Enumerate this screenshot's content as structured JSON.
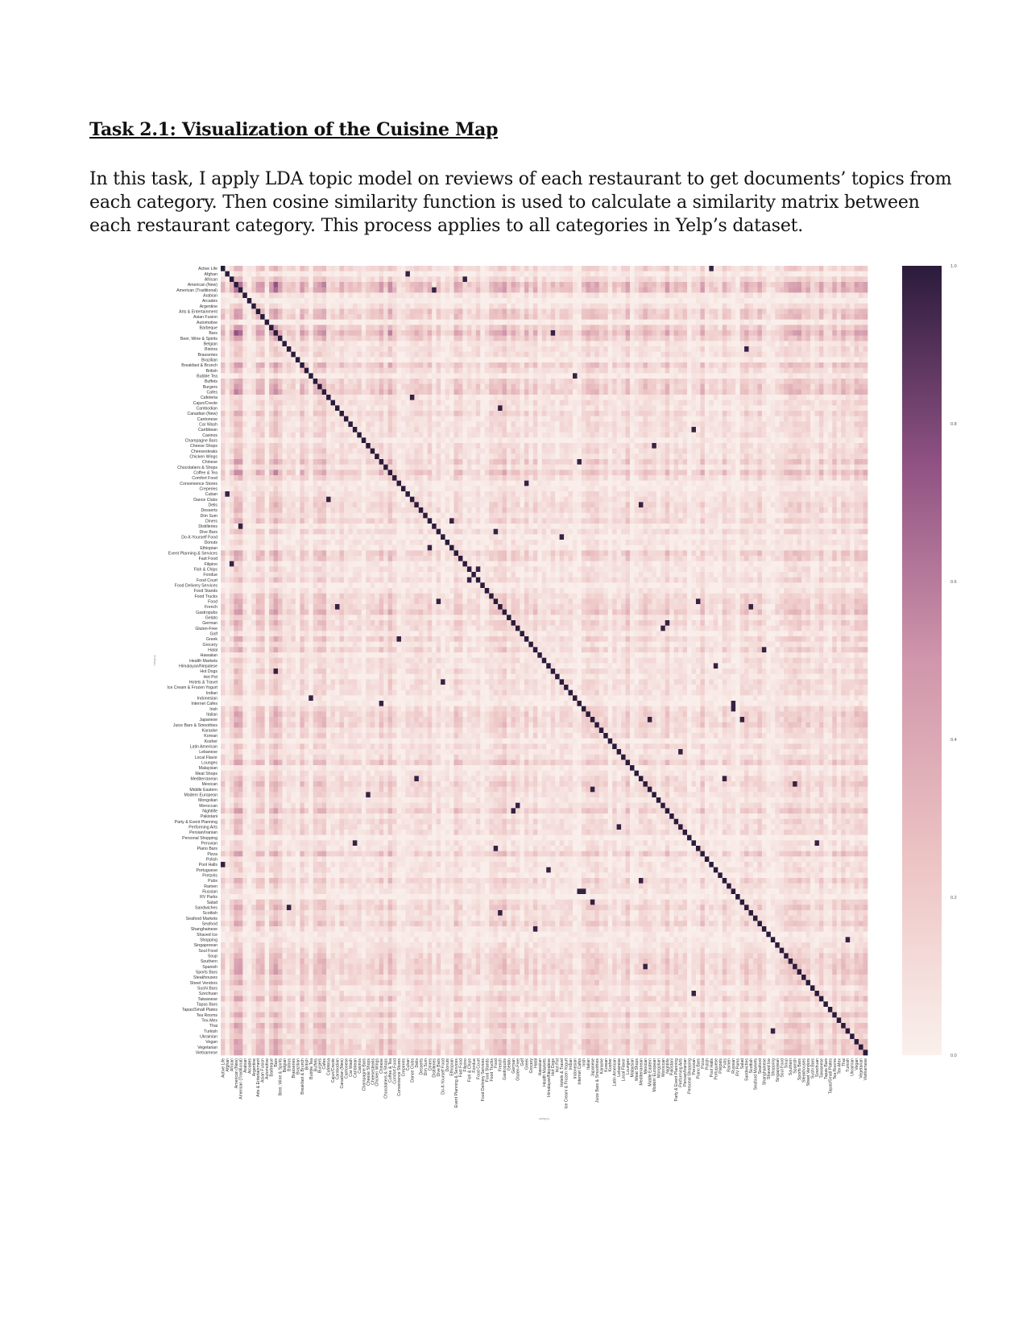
{
  "document": {
    "heading": "Task 2.1: Visualization of the Cuisine Map",
    "paragraph_lines": [
      "In this task, I apply LDA topic model on reviews of each restaurant to get documents’ topics from",
      "each category. Then cosine similarity function is used to calculate a similarity matrix between",
      "each restaurant category. This process applies to all categories in Yelp’s dataset."
    ]
  },
  "chart_data": {
    "type": "heatmap",
    "title": "",
    "xlabel": "category",
    "ylabel": "category",
    "colorbar": {
      "range": [
        0.0,
        1.0
      ],
      "ticks": [
        "0.0",
        "0.2",
        "0.4",
        "0.6",
        "0.8",
        "1.0"
      ]
    },
    "colormap": {
      "low": "#faf0ec",
      "mid": "#c98aa4",
      "high": "#2b1b3b"
    },
    "diagonal_value": 1.0,
    "categories": [
      "Active Life",
      "Afghan",
      "African",
      "American (New)",
      "American (Traditional)",
      "Arabian",
      "Arcades",
      "Argentine",
      "Arts & Entertainment",
      "Asian Fusion",
      "Automotive",
      "Barbeque",
      "Bars",
      "Beer, Wine & Spirits",
      "Belgian",
      "Bistros",
      "Brasseries",
      "Brazilian",
      "Breakfast & Brunch",
      "British",
      "Bubble Tea",
      "Buffets",
      "Burgers",
      "Cafes",
      "Cafeteria",
      "Cajun/Creole",
      "Cambodian",
      "Canadian (New)",
      "Cantonese",
      "Car Wash",
      "Caribbean",
      "Casinos",
      "Champagne Bars",
      "Cheese Shops",
      "Cheesesteaks",
      "Chicken Wings",
      "Chinese",
      "Chocolatiers & Shops",
      "Coffee & Tea",
      "Comfort Food",
      "Convenience Stores",
      "Creperies",
      "Cuban",
      "Dance Clubs",
      "Delis",
      "Desserts",
      "Dim Sum",
      "Diners",
      "Distilleries",
      "Dive Bars",
      "Do-It-Yourself Food",
      "Donuts",
      "Ethiopian",
      "Event Planning & Services",
      "Fast Food",
      "Filipino",
      "Fish & Chips",
      "Fondue",
      "Food Court",
      "Food Delivery Services",
      "Food Stands",
      "Food Trucks",
      "Food",
      "French",
      "Gastropubs",
      "Gelato",
      "German",
      "Gluten-Free",
      "Golf",
      "Greek",
      "Grocery",
      "Halal",
      "Hawaiian",
      "Health Markets",
      "Himalayan/Nepalese",
      "Hot Dogs",
      "Hot Pot",
      "Hotels & Travel",
      "Ice Cream & Frozen Yogurt",
      "Indian",
      "Indonesian",
      "Internet Cafes",
      "Irish",
      "Italian",
      "Japanese",
      "Juice Bars & Smoothies",
      "Karaoke",
      "Korean",
      "Kosher",
      "Latin American",
      "Lebanese",
      "Local Flavor",
      "Lounges",
      "Malaysian",
      "Meat Shops",
      "Mediterranean",
      "Mexican",
      "Middle Eastern",
      "Modern European",
      "Mongolian",
      "Moroccan",
      "Nightlife",
      "Pakistani",
      "Party & Event Planning",
      "Performing Arts",
      "Persian/Iranian",
      "Personal Shopping",
      "Peruvian",
      "Piano Bars",
      "Pizza",
      "Polish",
      "Pool Halls",
      "Portuguese",
      "Pretzels",
      "Pubs",
      "Ramen",
      "Russian",
      "RV Parks",
      "Salad",
      "Sandwiches",
      "Scottish",
      "Seafood Markets",
      "Seafood",
      "Shanghainese",
      "Shaved Ice",
      "Shopping",
      "Singaporean",
      "Soul Food",
      "Soup",
      "Southern",
      "Spanish",
      "Sports Bars",
      "Steakhouses",
      "Street Vendors",
      "Sushi Bars",
      "Szechuan",
      "Taiwanese",
      "Tapas Bars",
      "Tapas/Small Plates",
      "Tea Rooms",
      "Tex-Mex",
      "Thai",
      "Turkish",
      "Ukrainian",
      "Vegan",
      "Vegetarian",
      "Vietnamese"
    ],
    "profile": [
      0.45,
      0.1,
      0.4,
      0.85,
      0.85,
      0.2,
      0.05,
      0.25,
      0.6,
      0.6,
      0.05,
      0.55,
      0.85,
      0.55,
      0.2,
      0.3,
      0.3,
      0.1,
      0.6,
      0.35,
      0.1,
      0.5,
      0.6,
      0.65,
      0.2,
      0.3,
      0.2,
      0.45,
      0.25,
      0.3,
      0.3,
      0.3,
      0.1,
      0.3,
      0.35,
      0.3,
      0.55,
      0.25,
      0.65,
      0.35,
      0.1,
      0.15,
      0.25,
      0.3,
      0.4,
      0.4,
      0.25,
      0.45,
      0.1,
      0.35,
      0.1,
      0.2,
      0.15,
      0.55,
      0.45,
      0.15,
      0.25,
      0.2,
      0.35,
      0.1,
      0.2,
      0.4,
      0.45,
      0.45,
      0.6,
      0.25,
      0.45,
      0.35,
      0.15,
      0.45,
      0.2,
      0.45,
      0.15,
      0.3,
      0.2,
      0.35,
      0.2,
      0.35,
      0.3,
      0.3,
      0.1,
      0.1,
      0.35,
      0.5,
      0.45,
      0.5,
      0.3,
      0.35,
      0.1,
      0.35,
      0.2,
      0.3,
      0.55,
      0.1,
      0.2,
      0.35,
      0.5,
      0.35,
      0.3,
      0.2,
      0.3,
      0.55,
      0.2,
      0.35,
      0.3,
      0.35,
      0.05,
      0.2,
      0.2,
      0.55,
      0.15,
      0.25,
      0.25,
      0.15,
      0.45,
      0.3,
      0.2,
      0.05,
      0.35,
      0.5,
      0.3,
      0.3,
      0.5,
      0.25,
      0.1,
      0.15,
      0.25,
      0.3,
      0.45,
      0.5,
      0.5,
      0.55,
      0.35,
      0.45,
      0.2,
      0.3,
      0.5,
      0.2,
      0.2,
      0.5,
      0.25,
      0.55,
      0.4,
      0.3,
      0.55,
      0.5,
      0.55
    ],
    "highlights": [
      [
        0,
        111
      ],
      [
        1,
        42
      ],
      [
        2,
        55
      ],
      [
        4,
        48
      ],
      [
        12,
        75
      ],
      [
        15,
        119
      ],
      [
        20,
        80
      ],
      [
        24,
        43
      ],
      [
        26,
        63
      ],
      [
        30,
        107
      ],
      [
        33,
        98
      ],
      [
        36,
        81
      ],
      [
        40,
        69
      ],
      [
        44,
        95
      ],
      [
        47,
        52
      ],
      [
        50,
        77
      ],
      [
        58,
        56
      ],
      [
        62,
        49
      ],
      [
        66,
        101
      ],
      [
        71,
        123
      ],
      [
        74,
        112
      ],
      [
        81,
        116
      ],
      [
        82,
        116
      ],
      [
        84,
        118
      ],
      [
        90,
        104
      ],
      [
        97,
        84
      ],
      [
        100,
        67
      ],
      [
        108,
        62
      ],
      [
        114,
        95
      ],
      [
        120,
        63
      ],
      [
        125,
        142
      ],
      [
        130,
        96
      ],
      [
        135,
        107
      ]
    ]
  }
}
